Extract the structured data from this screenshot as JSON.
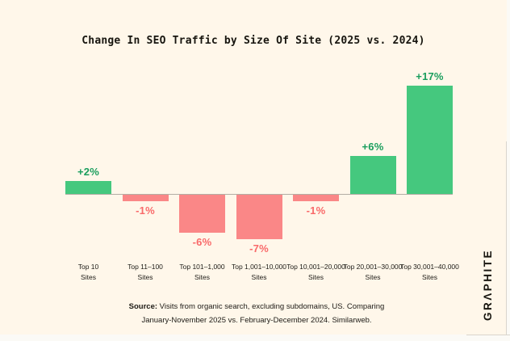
{
  "page": {
    "background": "#fff7ea"
  },
  "chart_data": {
    "type": "bar",
    "title": "Change In SEO Traffic by Size Of Site (2025 vs. 2024)",
    "categories": [
      "Top 10\nSites",
      "Top 11–100\nSites",
      "Top 101–1,000\nSites",
      "Top 1,001–10,000\nSites",
      "Top 10,001–20,000\nSites",
      "Top 20,001–30,000\nSites",
      "Top 30,001–40,000\nSites"
    ],
    "values": [
      2,
      -1,
      -6,
      -7,
      -1,
      6,
      17
    ],
    "value_labels": [
      "+2%",
      "-1%",
      "-6%",
      "-7%",
      "-1%",
      "+6%",
      "+17%"
    ],
    "xlabel": "",
    "ylabel": "",
    "ylim": [
      -10,
      20
    ],
    "grid": false,
    "legend": "none",
    "colors": {
      "positive_bar": "#45c87e",
      "negative_bar": "#fa8787",
      "positive_label": "#1a9e5d",
      "negative_label": "#f96a6a",
      "axis_line": "#b3aea4"
    }
  },
  "source": {
    "prefix": "Source:",
    "line1": " Visits from organic search, excluding subdomains, US. Comparing",
    "line2": "January-November 2025 vs. February-December 2024. Similarweb."
  },
  "logo": {
    "text": "GRΛPHITE"
  }
}
